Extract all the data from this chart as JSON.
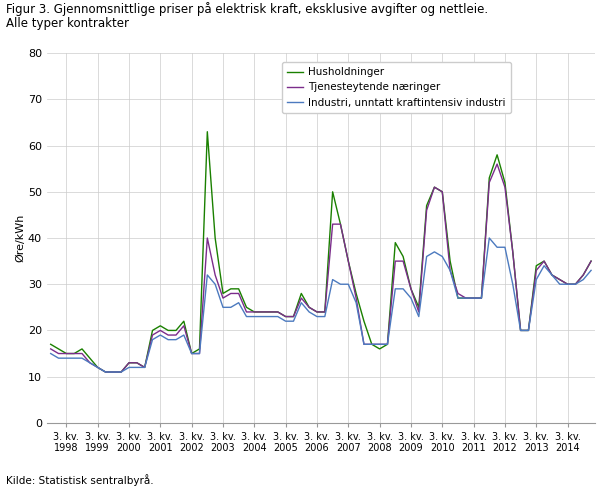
{
  "title_line1": "Figur 3. Gjennomsnittlige priser på elektrisk kraft, eksklusive avgifter og nettleie.",
  "title_line2": "Alle typer kontrakter",
  "ylabel": "Øre/kWh",
  "source": "Kilde: Statistisk sentralbyrå.",
  "ylim": [
    0,
    80
  ],
  "yticks": [
    0,
    10,
    20,
    30,
    40,
    50,
    60,
    70,
    80
  ],
  "legend_labels": [
    "Husholdninger",
    "Tjenesteytende næringer",
    "Industri, unntatt kraftintensiv industri"
  ],
  "line_colors": [
    "#1a8000",
    "#7b2d8b",
    "#4c7abf"
  ],
  "husholdninger": [
    17,
    16,
    15,
    15,
    16,
    14,
    12,
    11,
    11,
    11,
    13,
    13,
    12,
    20,
    21,
    20,
    20,
    22,
    15,
    16,
    63,
    40,
    28,
    29,
    29,
    25,
    24,
    24,
    24,
    24,
    23,
    23,
    28,
    25,
    24,
    24,
    50,
    43,
    35,
    28,
    22,
    17,
    16,
    17,
    39,
    36,
    29,
    25,
    47,
    51,
    50,
    35,
    27,
    27,
    27,
    27,
    53,
    58,
    52,
    37,
    20,
    20,
    34,
    35,
    32,
    31,
    30,
    30,
    32,
    35
  ],
  "tjenesteytende": [
    16,
    15,
    15,
    15,
    15,
    13,
    12,
    11,
    11,
    11,
    13,
    13,
    12,
    19,
    20,
    19,
    19,
    21,
    15,
    15,
    40,
    32,
    27,
    28,
    28,
    24,
    24,
    24,
    24,
    24,
    23,
    23,
    27,
    25,
    24,
    24,
    43,
    43,
    35,
    27,
    17,
    17,
    17,
    17,
    35,
    35,
    29,
    24,
    46,
    51,
    50,
    33,
    28,
    27,
    27,
    27,
    52,
    56,
    51,
    37,
    20,
    20,
    33,
    35,
    32,
    31,
    30,
    30,
    32,
    35
  ],
  "industri": [
    15,
    14,
    14,
    14,
    14,
    13,
    12,
    11,
    11,
    11,
    12,
    12,
    12,
    18,
    19,
    18,
    18,
    19,
    15,
    15,
    32,
    30,
    25,
    25,
    26,
    23,
    23,
    23,
    23,
    23,
    22,
    22,
    26,
    24,
    23,
    23,
    31,
    30,
    30,
    26,
    17,
    17,
    17,
    17,
    29,
    29,
    27,
    23,
    36,
    37,
    36,
    33,
    27,
    27,
    27,
    27,
    40,
    38,
    38,
    30,
    20,
    20,
    31,
    34,
    32,
    30,
    30,
    30,
    31,
    33
  ]
}
